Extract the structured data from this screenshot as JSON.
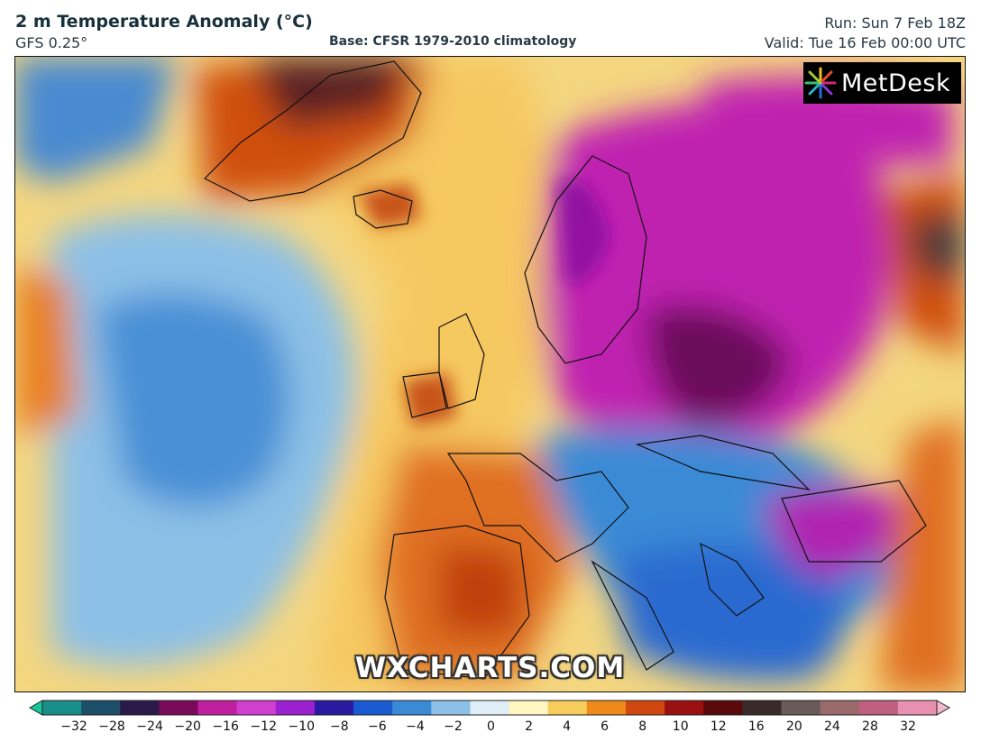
{
  "header": {
    "title": "2 m Temperature Anomaly (°C)",
    "model": "GFS 0.25°",
    "base": "Base: CFSR 1979-2010 climatology",
    "run": "Run: Sun 7 Feb 18Z",
    "valid": "Valid: Tue 16 Feb 00:00 UTC"
  },
  "logo": {
    "text": "MetDesk",
    "icon": "metdesk-starburst-icon"
  },
  "watermark": "WXCHARTS.COM",
  "colorbar": {
    "tick_labels": [
      "−32",
      "−28",
      "−24",
      "−20",
      "−16",
      "−12",
      "−10",
      "−8",
      "−6",
      "−4",
      "−2",
      "0",
      "2",
      "4",
      "6",
      "8",
      "10",
      "12",
      "16",
      "20",
      "24",
      "28",
      "32"
    ],
    "colors": [
      "#18c49a",
      "#1a8f8a",
      "#1d4f6a",
      "#2a1a4a",
      "#7a0a5a",
      "#c020a0",
      "#d040d0",
      "#9a20d0",
      "#2a1aa0",
      "#1a5ad0",
      "#3a8ad6",
      "#8cc0e6",
      "#dfeef6",
      "#fff6c0",
      "#f6cc5a",
      "#ee8a1a",
      "#d04810",
      "#9a1010",
      "#5a0a0a",
      "#3a2a2a",
      "#6a5a5a",
      "#9a6a6a",
      "#c06080",
      "#e890b0",
      "#f4b8cc"
    ]
  }
}
